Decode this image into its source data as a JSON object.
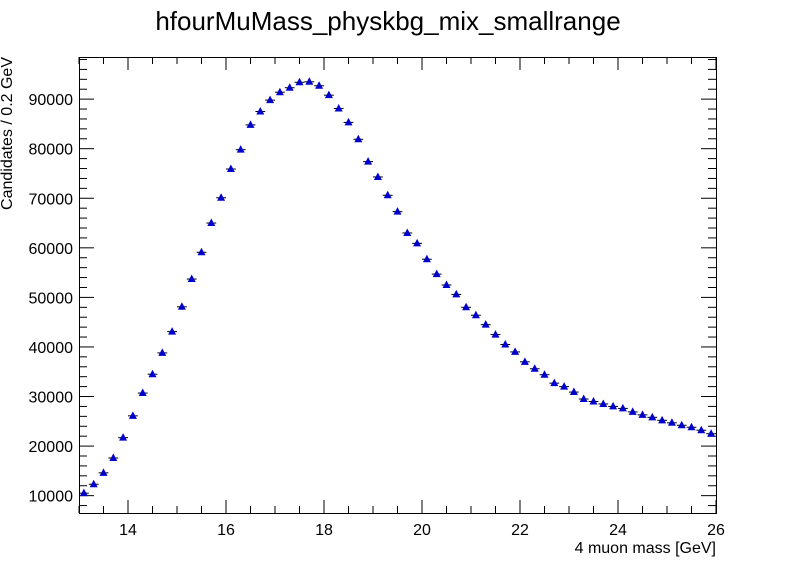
{
  "chart_data": {
    "type": "scatter",
    "title": "hfourMuMass_physkbg_mix_smallrange",
    "xlabel": "4 muon mass [GeV]",
    "ylabel": "Candidates / 0.2 GeV",
    "xlim": [
      13,
      26
    ],
    "ylim": [
      6500,
      98500
    ],
    "x_ticks": [
      "14",
      "16",
      "18",
      "20",
      "22",
      "24",
      "26"
    ],
    "y_ticks": [
      "10000",
      "20000",
      "30000",
      "40000",
      "50000",
      "60000",
      "70000",
      "80000",
      "90000"
    ],
    "marker": "filled-triangle-up",
    "marker_color": "#0000cc",
    "grid": false,
    "series": [
      {
        "x": [
          13.1,
          13.3,
          13.5,
          13.7,
          13.9,
          14.1,
          14.3,
          14.5,
          14.7,
          14.9,
          15.1,
          15.3,
          15.5,
          15.7,
          15.9,
          16.1,
          16.3,
          16.5,
          16.7,
          16.9,
          17.1,
          17.3,
          17.5,
          17.7,
          17.9,
          18.1,
          18.3,
          18.5,
          18.7,
          18.9,
          19.1,
          19.3,
          19.5,
          19.7,
          19.9,
          20.1,
          20.3,
          20.5,
          20.7,
          20.9,
          21.1,
          21.3,
          21.5,
          21.7,
          21.9,
          22.1,
          22.3,
          22.5,
          22.7,
          22.9,
          23.1,
          23.3,
          23.5,
          23.7,
          23.9,
          24.1,
          24.3,
          24.5,
          24.7,
          24.9,
          25.1,
          25.3,
          25.5,
          25.7,
          25.9
        ],
        "y": [
          10500,
          12300,
          14600,
          17600,
          21700,
          26100,
          30700,
          34500,
          38800,
          43100,
          48100,
          53700,
          59100,
          65000,
          70100,
          75900,
          79800,
          84800,
          87500,
          89800,
          91400,
          92300,
          93400,
          93500,
          92700,
          90800,
          88100,
          85300,
          81900,
          77400,
          74300,
          70600,
          67300,
          63000,
          60900,
          57700,
          54700,
          52500,
          50600,
          48000,
          46400,
          44500,
          42500,
          40500,
          39000,
          37000,
          35600,
          34400,
          32700,
          32000,
          30900,
          29500,
          29000,
          28500,
          28000,
          27600,
          26900,
          26300,
          25800,
          25200,
          24700,
          24200,
          23800,
          23200,
          22500
        ]
      }
    ]
  }
}
